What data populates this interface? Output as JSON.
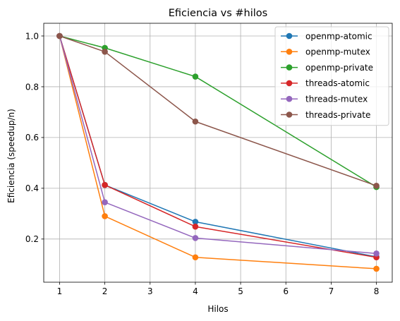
{
  "chart_data": {
    "type": "line",
    "title": "Eficiencia vs #hilos",
    "xlabel": "Hilos",
    "ylabel": "Eficiencia (speedup/n)",
    "x": [
      1,
      2,
      4,
      8
    ],
    "xlim": [
      0.65,
      8.35
    ],
    "ylim": [
      0.03,
      1.05
    ],
    "xticks": [
      1,
      2,
      3,
      4,
      5,
      6,
      7,
      8
    ],
    "yticks": [
      0.2,
      0.4,
      0.6,
      0.8,
      1.0
    ],
    "ytick_labels": [
      "0.2",
      "0.4",
      "0.6",
      "0.8",
      "1.0"
    ],
    "grid": true,
    "legend_position": "top-right",
    "series": [
      {
        "name": "openmp-atomic",
        "color": "#1f77b4",
        "values": [
          1.0,
          0.413,
          0.268,
          0.13
        ]
      },
      {
        "name": "openmp-mutex",
        "color": "#ff7f0e",
        "values": [
          1.0,
          0.29,
          0.128,
          0.083
        ]
      },
      {
        "name": "openmp-private",
        "color": "#2ca02c",
        "values": [
          1.0,
          0.953,
          0.84,
          0.405
        ]
      },
      {
        "name": "threads-atomic",
        "color": "#d62728",
        "values": [
          1.0,
          0.413,
          0.249,
          0.128
        ]
      },
      {
        "name": "threads-mutex",
        "color": "#9467bd",
        "values": [
          1.0,
          0.345,
          0.204,
          0.143
        ]
      },
      {
        "name": "threads-private",
        "color": "#8c564b",
        "values": [
          1.0,
          0.938,
          0.663,
          0.41
        ]
      }
    ]
  }
}
